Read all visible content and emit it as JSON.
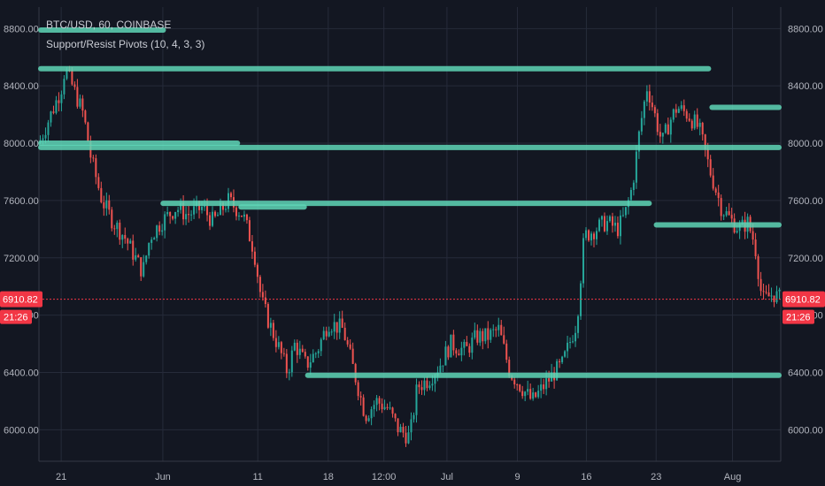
{
  "legend": {
    "symbol": "BTC/USD, 60, COINBASE",
    "indicator": "Support/Resist Pivots (10, 4, 3, 3)"
  },
  "chart_data": {
    "type": "candlestick",
    "y_ticks": [
      6000,
      6400,
      6800,
      7200,
      7600,
      8000,
      8400,
      8800
    ],
    "y_tick_labels": [
      "6000.00",
      "6400.00",
      "6800.00",
      "7200.00",
      "7600.00",
      "8000.00",
      "8400.00",
      "8800.00"
    ],
    "ylim": [
      5780,
      8950
    ],
    "x_labels": [
      "21",
      "Jun",
      "11",
      "18",
      "12:00",
      "Jul",
      "9",
      "16",
      "23",
      "Aug"
    ],
    "current_price": 6910.82,
    "current_price_label": "6910.82",
    "countdown_label": "21:26",
    "grid": true,
    "colors": {
      "background": "#131722",
      "up": "#26a69a",
      "down": "#ef5350",
      "pivot_line": "#5fd6b7",
      "grid": "#262b3a",
      "price_tag": "#f23645"
    },
    "close_path": [
      [
        0,
        8000
      ],
      [
        0.02,
        8250
      ],
      [
        0.03,
        8380
      ],
      [
        0.035,
        8520
      ],
      [
        0.045,
        8400
      ],
      [
        0.06,
        8200
      ],
      [
        0.07,
        7900
      ],
      [
        0.085,
        7600
      ],
      [
        0.1,
        7450
      ],
      [
        0.115,
        7350
      ],
      [
        0.125,
        7250
      ],
      [
        0.14,
        7100
      ],
      [
        0.15,
        7350
      ],
      [
        0.165,
        7450
      ],
      [
        0.185,
        7550
      ],
      [
        0.2,
        7500
      ],
      [
        0.22,
        7550
      ],
      [
        0.235,
        7450
      ],
      [
        0.255,
        7600
      ],
      [
        0.275,
        7500
      ],
      [
        0.29,
        7250
      ],
      [
        0.3,
        6900
      ],
      [
        0.31,
        6750
      ],
      [
        0.325,
        6550
      ],
      [
        0.335,
        6400
      ],
      [
        0.345,
        6600
      ],
      [
        0.36,
        6450
      ],
      [
        0.375,
        6550
      ],
      [
        0.39,
        6750
      ],
      [
        0.41,
        6700
      ],
      [
        0.425,
        6400
      ],
      [
        0.44,
        6100
      ],
      [
        0.455,
        6200
      ],
      [
        0.47,
        6150
      ],
      [
        0.485,
        6000
      ],
      [
        0.5,
        5950
      ],
      [
        0.51,
        6300
      ],
      [
        0.525,
        6350
      ],
      [
        0.54,
        6450
      ],
      [
        0.555,
        6600
      ],
      [
        0.575,
        6550
      ],
      [
        0.59,
        6650
      ],
      [
        0.605,
        6650
      ],
      [
        0.62,
        6700
      ],
      [
        0.635,
        6400
      ],
      [
        0.65,
        6300
      ],
      [
        0.665,
        6200
      ],
      [
        0.68,
        6300
      ],
      [
        0.695,
        6400
      ],
      [
        0.705,
        6450
      ],
      [
        0.715,
        6600
      ],
      [
        0.725,
        6750
      ],
      [
        0.735,
        7350
      ],
      [
        0.75,
        7400
      ],
      [
        0.765,
        7450
      ],
      [
        0.78,
        7400
      ],
      [
        0.79,
        7500
      ],
      [
        0.8,
        7700
      ],
      [
        0.81,
        8100
      ],
      [
        0.82,
        8400
      ],
      [
        0.83,
        8200
      ],
      [
        0.84,
        8000
      ],
      [
        0.85,
        8150
      ],
      [
        0.86,
        8250
      ],
      [
        0.875,
        8200
      ],
      [
        0.89,
        8100
      ],
      [
        0.905,
        7800
      ],
      [
        0.92,
        7550
      ],
      [
        0.935,
        7450
      ],
      [
        0.945,
        7400
      ],
      [
        0.955,
        7450
      ],
      [
        0.965,
        7300
      ],
      [
        0.975,
        6900
      ],
      [
        0.99,
        6950
      ],
      [
        1.0,
        6910
      ]
    ],
    "pivot_levels": [
      {
        "price": 8520,
        "from": 0.0,
        "to": 0.905
      },
      {
        "price": 7970,
        "from": 0.0,
        "to": 1.0
      },
      {
        "price": 8000,
        "from": 0.0,
        "to": 0.27
      },
      {
        "price": 7580,
        "from": 0.165,
        "to": 0.825
      },
      {
        "price": 7555,
        "from": 0.27,
        "to": 0.36
      },
      {
        "price": 7430,
        "from": 0.83,
        "to": 1.0
      },
      {
        "price": 8250,
        "from": 0.905,
        "to": 1.0
      },
      {
        "price": 6380,
        "from": 0.36,
        "to": 1.0
      },
      {
        "price": 8790,
        "from": 0.0,
        "to": 0.17
      }
    ]
  }
}
